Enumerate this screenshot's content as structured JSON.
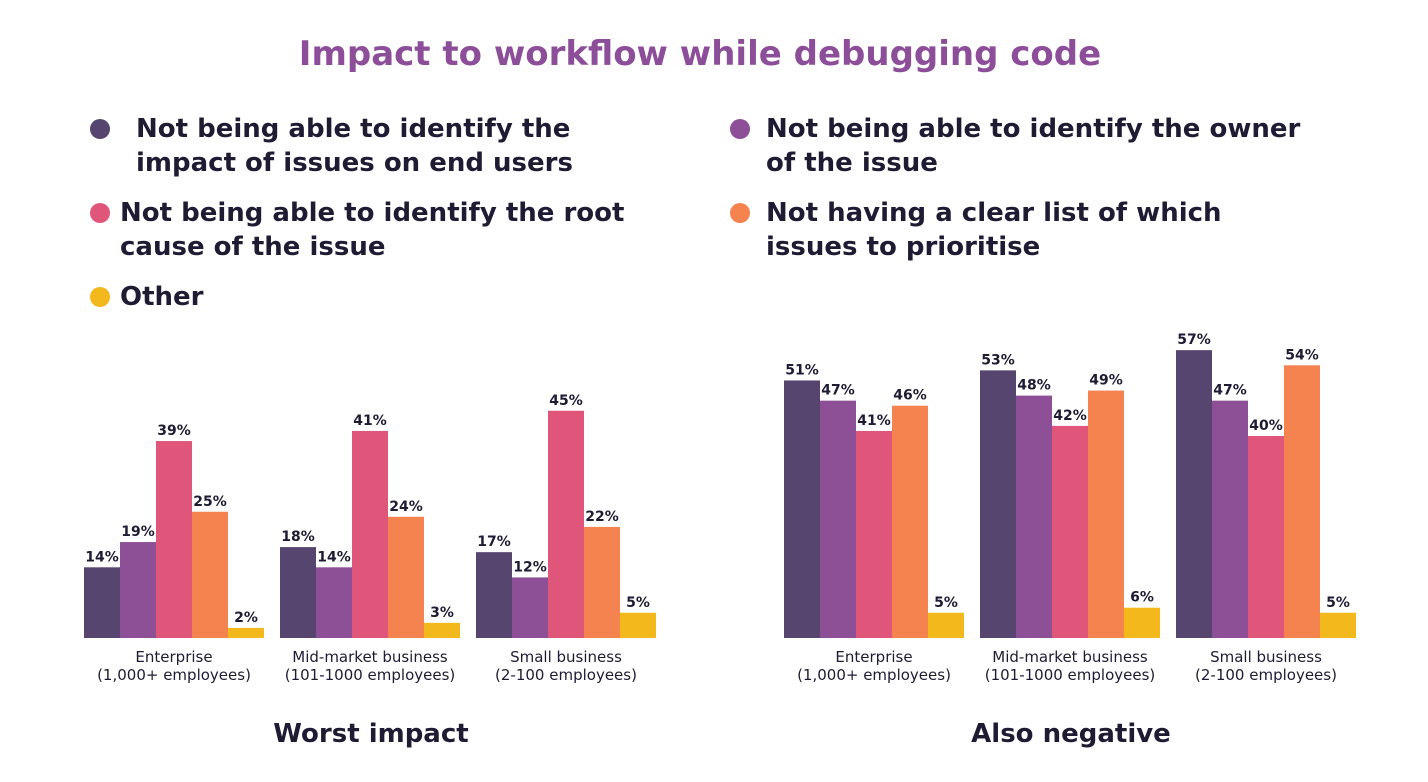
{
  "title": "Impact to workflow while debugging code",
  "legend": [
    {
      "label": "Not being able to identify the impact of issues on end users",
      "color": "#56456e"
    },
    {
      "label": "Not being able to identify the owner of the issue",
      "color": "#8d5096"
    },
    {
      "label": "Not being able to identify the root cause of the issue",
      "color": "#e0567b"
    },
    {
      "label": "Not having a clear list of which issues to prioritise",
      "color": "#f4834f"
    },
    {
      "label": "Other",
      "color": "#f2b81c"
    }
  ],
  "chart_data": [
    {
      "type": "bar",
      "title": "Worst impact",
      "categories": [
        [
          "Enterprise",
          "(1,000+ employees)"
        ],
        [
          "Mid-market business",
          "(101-1000 employees)"
        ],
        [
          "Small business",
          "(2-100 employees)"
        ]
      ],
      "series": [
        {
          "name": "Not being able to identify the impact of issues on end users",
          "values": [
            14,
            18,
            17
          ]
        },
        {
          "name": "Not being able to identify the owner of the issue",
          "values": [
            19,
            14,
            12
          ]
        },
        {
          "name": "Not being able to identify the root cause of the issue",
          "values": [
            39,
            41,
            45
          ]
        },
        {
          "name": "Not having a clear list of which issues to prioritise",
          "values": [
            25,
            24,
            22
          ]
        },
        {
          "name": "Other",
          "values": [
            2,
            3,
            5
          ]
        }
      ],
      "value_suffix": "%",
      "ylim": [
        0,
        100
      ],
      "grid": false
    },
    {
      "type": "bar",
      "title": "Also negative",
      "categories": [
        [
          "Enterprise",
          "(1,000+ employees)"
        ],
        [
          "Mid-market business",
          "(101-1000 employees)"
        ],
        [
          "Small business",
          "(2-100 employees)"
        ]
      ],
      "series": [
        {
          "name": "Not being able to identify the impact of issues on end users",
          "values": [
            51,
            53,
            57
          ]
        },
        {
          "name": "Not being able to identify the owner of the issue",
          "values": [
            47,
            48,
            47
          ]
        },
        {
          "name": "Not being able to identify the root cause of the issue",
          "values": [
            41,
            42,
            40
          ]
        },
        {
          "name": "Not having a clear list of which issues to prioritise",
          "values": [
            46,
            49,
            54
          ]
        },
        {
          "name": "Other",
          "values": [
            5,
            6,
            5
          ]
        }
      ],
      "value_suffix": "%",
      "ylim": [
        0,
        100
      ],
      "grid": false
    }
  ]
}
